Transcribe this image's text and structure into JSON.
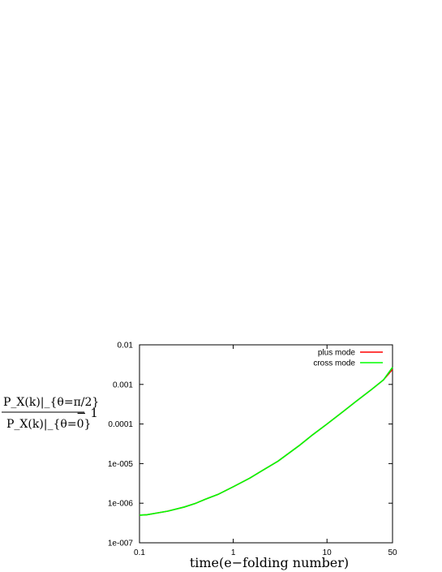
{
  "chart_data": {
    "type": "line",
    "xlabel": "time(e−folding number)",
    "ylabel": {
      "numerator": "P_X(k)|_{θ=π/2}",
      "denominator": "P_X(k)|_{θ=0}",
      "suffix": "− 1"
    },
    "x_scale": "log",
    "y_scale": "log",
    "xlim": [
      0.1,
      50
    ],
    "ylim": [
      1e-07,
      0.01
    ],
    "x_ticks": [
      {
        "value": 0.1,
        "label": "0.1"
      },
      {
        "value": 1,
        "label": "1"
      },
      {
        "value": 10,
        "label": "10"
      },
      {
        "value": 50,
        "label": "50"
      }
    ],
    "y_ticks": [
      {
        "value": 1e-07,
        "label": "1e-007"
      },
      {
        "value": 1e-06,
        "label": "1e-006"
      },
      {
        "value": 1e-05,
        "label": "1e-005"
      },
      {
        "value": 0.0001,
        "label": "0.0001"
      },
      {
        "value": 0.001,
        "label": "0.001"
      },
      {
        "value": 0.01,
        "label": "0.01"
      }
    ],
    "legend_position": "top-right",
    "series": [
      {
        "name": "plus mode",
        "color": "#ff0000",
        "x": [
          0.1,
          0.12,
          0.15,
          0.2,
          0.3,
          0.4,
          0.5,
          0.7,
          1,
          1.5,
          2,
          3,
          5,
          7,
          10,
          15,
          20,
          30,
          40,
          50
        ],
        "y": [
          5e-07,
          5.1e-07,
          5.6e-07,
          6.3e-07,
          8e-07,
          1e-06,
          1.25e-06,
          1.7e-06,
          2.6e-06,
          4.3e-06,
          6.5e-06,
          1.15e-05,
          2.8e-05,
          5.3e-05,
          0.0001,
          0.00021,
          0.00036,
          0.00075,
          0.0013,
          0.0024
        ]
      },
      {
        "name": "cross mode",
        "color": "#00ff00",
        "x": [
          0.1,
          0.12,
          0.15,
          0.2,
          0.3,
          0.4,
          0.5,
          0.7,
          1,
          1.5,
          2,
          3,
          5,
          7,
          10,
          15,
          20,
          30,
          40,
          50
        ],
        "y": [
          5e-07,
          5.1e-07,
          5.6e-07,
          6.3e-07,
          8e-07,
          1e-06,
          1.25e-06,
          1.7e-06,
          2.6e-06,
          4.3e-06,
          6.5e-06,
          1.15e-05,
          2.8e-05,
          5.3e-05,
          0.0001,
          0.00021,
          0.00036,
          0.00075,
          0.0013,
          0.0027
        ]
      }
    ]
  }
}
